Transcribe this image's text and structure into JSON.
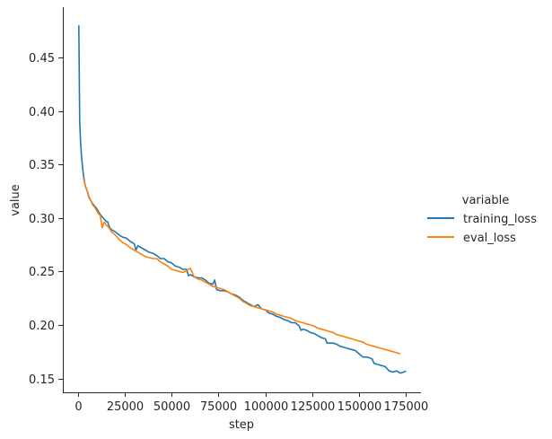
{
  "chart_data": {
    "type": "line",
    "xlabel": "step",
    "ylabel": "value",
    "xlim": [
      -8000,
      183000
    ],
    "ylim": [
      0.137,
      0.497
    ],
    "xticks": [
      0,
      25000,
      50000,
      75000,
      100000,
      125000,
      150000,
      175000
    ],
    "xtick_labels": [
      "0",
      "25000",
      "50000",
      "75000",
      "100000",
      "125000",
      "150000",
      "175000"
    ],
    "yticks": [
      0.15,
      0.2,
      0.25,
      0.3,
      0.35,
      0.4,
      0.45
    ],
    "ytick_labels": [
      "0.15",
      "0.20",
      "0.25",
      "0.30",
      "0.35",
      "0.40",
      "0.45"
    ],
    "grid": false,
    "legend": {
      "title": "variable",
      "placement": "right"
    },
    "series": [
      {
        "name": "training_loss",
        "color": "#1f77b4",
        "x": [
          500,
          1000,
          1500,
          2000,
          2500,
          3000,
          3500,
          4000,
          5000,
          6000,
          7000,
          8000,
          9000,
          10000,
          11000,
          12000,
          13000,
          14000,
          15000,
          16000,
          17000,
          18000,
          19000,
          20000,
          22000,
          24000,
          26000,
          28000,
          30000,
          31000,
          32000,
          34000,
          36000,
          38000,
          40000,
          42000,
          44000,
          46000,
          48000,
          50000,
          52000,
          54000,
          56000,
          58000,
          59000,
          60000,
          62000,
          64000,
          66000,
          68000,
          70000,
          72000,
          73000,
          74000,
          76000,
          78000,
          80000,
          82000,
          84000,
          86000,
          88000,
          90000,
          92000,
          94000,
          96000,
          98000,
          100000,
          102000,
          104000,
          106000,
          108000,
          110000,
          112000,
          114000,
          116000,
          118000,
          119000,
          120000,
          122000,
          124000,
          126000,
          128000,
          130000,
          132000,
          133000,
          134000,
          136000,
          138000,
          140000,
          142000,
          144000,
          146000,
          148000,
          150000,
          152000,
          154000,
          156000,
          157000,
          158000,
          160000,
          162000,
          164000,
          166000,
          168000,
          170000,
          172000,
          174000,
          175000
        ],
        "y": [
          0.48,
          0.39,
          0.37,
          0.357,
          0.348,
          0.34,
          0.334,
          0.33,
          0.325,
          0.319,
          0.316,
          0.313,
          0.311,
          0.309,
          0.306,
          0.303,
          0.301,
          0.299,
          0.297,
          0.296,
          0.291,
          0.289,
          0.288,
          0.287,
          0.284,
          0.282,
          0.281,
          0.278,
          0.276,
          0.27,
          0.274,
          0.272,
          0.27,
          0.268,
          0.267,
          0.265,
          0.262,
          0.262,
          0.259,
          0.258,
          0.255,
          0.254,
          0.252,
          0.252,
          0.246,
          0.247,
          0.245,
          0.244,
          0.244,
          0.242,
          0.239,
          0.238,
          0.242,
          0.233,
          0.232,
          0.232,
          0.231,
          0.229,
          0.228,
          0.226,
          0.223,
          0.221,
          0.219,
          0.217,
          0.219,
          0.215,
          0.214,
          0.211,
          0.21,
          0.208,
          0.207,
          0.205,
          0.204,
          0.202,
          0.202,
          0.199,
          0.195,
          0.196,
          0.195,
          0.193,
          0.192,
          0.19,
          0.188,
          0.187,
          0.183,
          0.183,
          0.183,
          0.182,
          0.18,
          0.179,
          0.178,
          0.177,
          0.176,
          0.173,
          0.17,
          0.17,
          0.169,
          0.168,
          0.164,
          0.163,
          0.162,
          0.161,
          0.157,
          0.156,
          0.157,
          0.155,
          0.156,
          0.157
        ]
      },
      {
        "name": "eval_loss",
        "color": "#ff7f0e",
        "x": [
          3000,
          4000,
          5000,
          6000,
          7000,
          8000,
          9000,
          10000,
          11000,
          12000,
          13000,
          14000,
          15000,
          16000,
          17000,
          18000,
          20000,
          22000,
          24000,
          26000,
          28000,
          30000,
          32000,
          34000,
          36000,
          38000,
          40000,
          42000,
          44000,
          46000,
          48000,
          50000,
          52000,
          54000,
          56000,
          58000,
          60000,
          62000,
          64000,
          66000,
          68000,
          70000,
          72000,
          74000,
          76000,
          78000,
          80000,
          82000,
          84000,
          86000,
          88000,
          90000,
          92000,
          94000,
          96000,
          98000,
          100000,
          102000,
          104000,
          106000,
          108000,
          110000,
          112000,
          114000,
          116000,
          118000,
          120000,
          122000,
          124000,
          126000,
          128000,
          130000,
          132000,
          134000,
          136000,
          138000,
          140000,
          142000,
          144000,
          146000,
          148000,
          150000,
          152000,
          154000,
          156000,
          158000,
          160000,
          162000,
          164000,
          166000,
          168000,
          170000,
          172000
        ],
        "y": [
          0.337,
          0.33,
          0.325,
          0.32,
          0.316,
          0.312,
          0.31,
          0.307,
          0.304,
          0.302,
          0.291,
          0.296,
          0.294,
          0.292,
          0.29,
          0.287,
          0.284,
          0.28,
          0.277,
          0.275,
          0.272,
          0.27,
          0.268,
          0.266,
          0.264,
          0.263,
          0.262,
          0.262,
          0.259,
          0.257,
          0.255,
          0.252,
          0.251,
          0.25,
          0.249,
          0.251,
          0.253,
          0.245,
          0.243,
          0.242,
          0.24,
          0.238,
          0.236,
          0.235,
          0.234,
          0.233,
          0.231,
          0.229,
          0.227,
          0.225,
          0.222,
          0.22,
          0.218,
          0.217,
          0.216,
          0.215,
          0.214,
          0.213,
          0.212,
          0.21,
          0.209,
          0.208,
          0.207,
          0.206,
          0.204,
          0.203,
          0.202,
          0.201,
          0.2,
          0.199,
          0.197,
          0.196,
          0.195,
          0.194,
          0.193,
          0.191,
          0.19,
          0.189,
          0.188,
          0.187,
          0.186,
          0.185,
          0.184,
          0.182,
          0.181,
          0.18,
          0.179,
          0.178,
          0.177,
          0.176,
          0.175,
          0.174,
          0.173
        ]
      }
    ]
  }
}
